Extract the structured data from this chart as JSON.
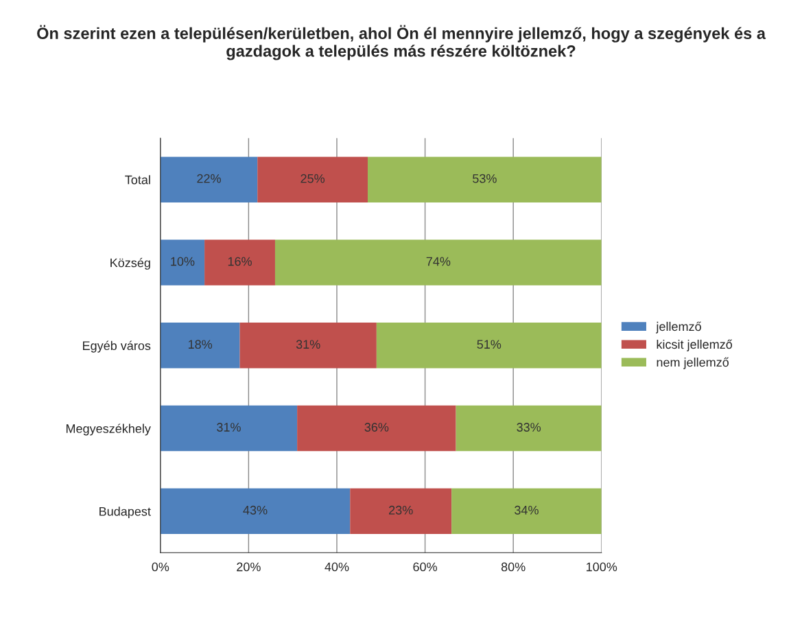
{
  "chart_data": {
    "type": "bar",
    "orientation": "horizontal",
    "stacked": true,
    "title": "Ön szerint ezen a településen/kerületben, ahol Ön él mennyire jellemző, hogy a szegények és a gazdagok a település más részére költöznek?",
    "categories": [
      "Total",
      "Község",
      "Egyéb város",
      "Megyeszékhely",
      "Budapest"
    ],
    "series": [
      {
        "name": "jellemző",
        "color": "#4f81bd",
        "values": [
          22,
          10,
          18,
          31,
          43
        ],
        "value_labels": [
          "22%",
          "10%",
          "18%",
          "31%",
          "43%"
        ]
      },
      {
        "name": "kicsit jellemző",
        "color": "#c0504d",
        "values": [
          25,
          16,
          31,
          36,
          23
        ],
        "value_labels": [
          "25%",
          "16%",
          "31%",
          "36%",
          "23%"
        ]
      },
      {
        "name": "nem jellemző",
        "color": "#9bbb59",
        "values": [
          53,
          74,
          51,
          33,
          34
        ],
        "value_labels": [
          "53%",
          "74%",
          "51%",
          "33%",
          "34%"
        ]
      }
    ],
    "xlim": [
      0,
      100
    ],
    "xticks": [
      {
        "value": 0,
        "label": "0%"
      },
      {
        "value": 20,
        "label": "20%"
      },
      {
        "value": 40,
        "label": "40%"
      },
      {
        "value": 60,
        "label": "60%"
      },
      {
        "value": 80,
        "label": "80%"
      },
      {
        "value": 100,
        "label": "100%"
      }
    ],
    "grid": "x",
    "legend": "right"
  }
}
